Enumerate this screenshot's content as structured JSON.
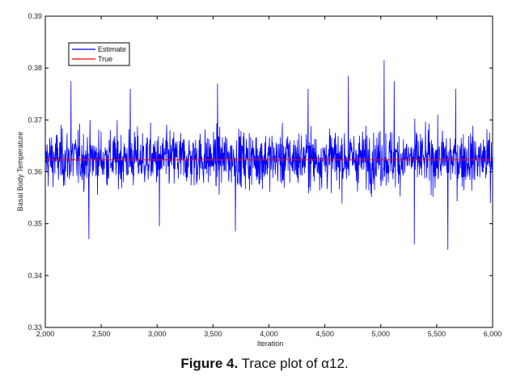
{
  "chart_data": {
    "type": "line",
    "xlabel": "Iteration",
    "ylabel": "Basal Body Temperature",
    "xlim": [
      2000,
      6000
    ],
    "ylim": [
      0.33,
      0.39
    ],
    "x_ticks": [
      2000,
      2500,
      3000,
      3500,
      4000,
      4500,
      5000,
      5500,
      6000
    ],
    "x_tick_labels": [
      "2,000",
      "2,500",
      "3,000",
      "3,500",
      "4,000",
      "4,500",
      "5,000",
      "5,500",
      "6,000"
    ],
    "y_ticks": [
      0.33,
      0.34,
      0.35,
      0.36,
      0.37,
      0.38,
      0.39
    ],
    "y_tick_labels": [
      "0.33",
      "0.34",
      "0.35",
      "0.36",
      "0.37",
      "0.38",
      "0.39"
    ],
    "legend_position": "top-left",
    "series": [
      {
        "name": "Estimate",
        "color": "#0000ff",
        "style": "trace",
        "mean": 0.3625,
        "typical_range": [
          0.354,
          0.371
        ],
        "x_range": [
          2000,
          6000
        ],
        "spikes": [
          {
            "x": 2230,
            "y": 0.3775
          },
          {
            "x": 2390,
            "y": 0.347
          },
          {
            "x": 2760,
            "y": 0.376
          },
          {
            "x": 3020,
            "y": 0.3495
          },
          {
            "x": 3540,
            "y": 0.377
          },
          {
            "x": 3700,
            "y": 0.3485
          },
          {
            "x": 4350,
            "y": 0.376
          },
          {
            "x": 4710,
            "y": 0.3785
          },
          {
            "x": 5030,
            "y": 0.3815
          },
          {
            "x": 5120,
            "y": 0.3775
          },
          {
            "x": 5300,
            "y": 0.346
          },
          {
            "x": 5600,
            "y": 0.345
          },
          {
            "x": 5670,
            "y": 0.376
          },
          {
            "x": 5980,
            "y": 0.354
          }
        ]
      },
      {
        "name": "True",
        "color": "#ff0000",
        "style": "constant",
        "value": 0.3623
      }
    ]
  },
  "caption": {
    "label": "Figure 4.",
    "text": " Trace plot of α12."
  }
}
